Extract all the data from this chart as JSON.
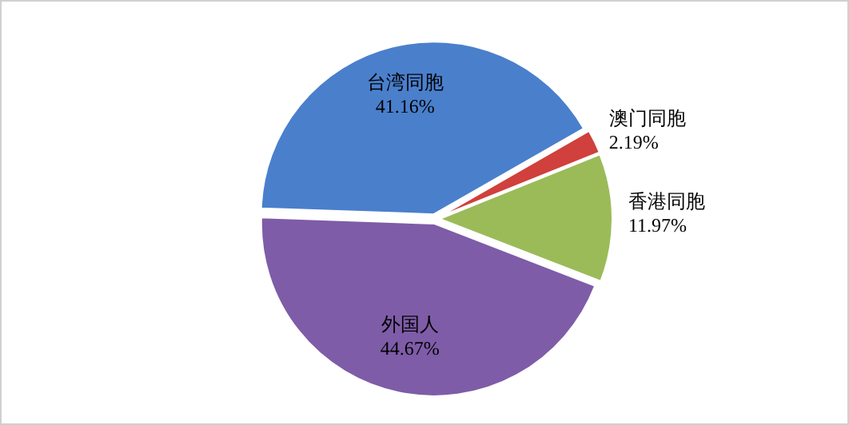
{
  "chart_data": {
    "type": "pie",
    "categories": [
      "台湾同胞",
      "澳门同胞",
      "香港同胞",
      "外国人"
    ],
    "values": [
      41.16,
      2.19,
      11.97,
      44.67
    ],
    "value_labels": [
      "41.16%",
      "2.19%",
      "11.97%",
      "44.67%"
    ],
    "colors": [
      "#4a7fcc",
      "#d0403c",
      "#9bbb59",
      "#7e5ca8"
    ]
  }
}
